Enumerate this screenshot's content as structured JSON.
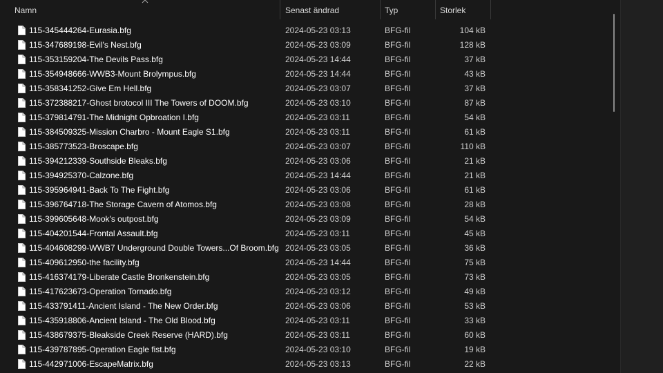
{
  "columns": {
    "name": "Namn",
    "date": "Senast ändrad",
    "type": "Typ",
    "size": "Storlek"
  },
  "files": [
    {
      "name": "115-345444264-Eurasia.bfg",
      "date": "2024-05-23 03:13",
      "type": "BFG-fil",
      "size": "104 kB"
    },
    {
      "name": "115-347689198-Evil's Nest.bfg",
      "date": "2024-05-23 03:09",
      "type": "BFG-fil",
      "size": "128 kB"
    },
    {
      "name": "115-353159204-The Devils Pass.bfg",
      "date": "2024-05-23 14:44",
      "type": "BFG-fil",
      "size": "37 kB"
    },
    {
      "name": "115-354948666-WWB3-Mount Brolympus.bfg",
      "date": "2024-05-23 14:44",
      "type": "BFG-fil",
      "size": "43 kB"
    },
    {
      "name": "115-358341252-Give Em Hell.bfg",
      "date": "2024-05-23 03:07",
      "type": "BFG-fil",
      "size": "37 kB"
    },
    {
      "name": "115-372388217-Ghost brotocol III The Towers of DOOM.bfg",
      "date": "2024-05-23 03:10",
      "type": "BFG-fil",
      "size": "87 kB"
    },
    {
      "name": "115-379814791-The Midnight Opbroation I.bfg",
      "date": "2024-05-23 03:11",
      "type": "BFG-fil",
      "size": "54 kB"
    },
    {
      "name": "115-384509325-Mission Charbro - Mount Eagle S1.bfg",
      "date": "2024-05-23 03:11",
      "type": "BFG-fil",
      "size": "61 kB"
    },
    {
      "name": "115-385773523-Broscape.bfg",
      "date": "2024-05-23 03:07",
      "type": "BFG-fil",
      "size": "110 kB"
    },
    {
      "name": "115-394212339-Southside Bleaks.bfg",
      "date": "2024-05-23 03:06",
      "type": "BFG-fil",
      "size": "21 kB"
    },
    {
      "name": "115-394925370-Calzone.bfg",
      "date": "2024-05-23 14:44",
      "type": "BFG-fil",
      "size": "21 kB"
    },
    {
      "name": "115-395964941-Back To The Fight.bfg",
      "date": "2024-05-23 03:06",
      "type": "BFG-fil",
      "size": "61 kB"
    },
    {
      "name": "115-396764718-The Storage Cavern of Atomos.bfg",
      "date": "2024-05-23 03:08",
      "type": "BFG-fil",
      "size": "28 kB"
    },
    {
      "name": "115-399605648-Mook's outpost.bfg",
      "date": "2024-05-23 03:09",
      "type": "BFG-fil",
      "size": "54 kB"
    },
    {
      "name": "115-404201544-Frontal Assault.bfg",
      "date": "2024-05-23 03:11",
      "type": "BFG-fil",
      "size": "45 kB"
    },
    {
      "name": "115-404608299-WWB7 Underground Double Towers...Of Broom.bfg",
      "date": "2024-05-23 03:05",
      "type": "BFG-fil",
      "size": "36 kB"
    },
    {
      "name": "115-409612950-the facility.bfg",
      "date": "2024-05-23 14:44",
      "type": "BFG-fil",
      "size": "75 kB"
    },
    {
      "name": "115-416374179-Liberate Castle Bronkenstein.bfg",
      "date": "2024-05-23 03:05",
      "type": "BFG-fil",
      "size": "73 kB"
    },
    {
      "name": "115-417623673-Operation Tornado.bfg",
      "date": "2024-05-23 03:12",
      "type": "BFG-fil",
      "size": "49 kB"
    },
    {
      "name": "115-433791411-Ancient Island - The New Order.bfg",
      "date": "2024-05-23 03:06",
      "type": "BFG-fil",
      "size": "53 kB"
    },
    {
      "name": "115-435918806-Ancient Island - The Old Blood.bfg",
      "date": "2024-05-23 03:11",
      "type": "BFG-fil",
      "size": "33 kB"
    },
    {
      "name": "115-438679375-Bleakside Creek Reserve (HARD).bfg",
      "date": "2024-05-23 03:11",
      "type": "BFG-fil",
      "size": "60 kB"
    },
    {
      "name": "115-439787895-Operation Eagle fist.bfg",
      "date": "2024-05-23 03:10",
      "type": "BFG-fil",
      "size": "19 kB"
    },
    {
      "name": "115-442971006-EscapeMatrix.bfg",
      "date": "2024-05-23 03:13",
      "type": "BFG-fil",
      "size": "22 kB"
    }
  ],
  "icons": {
    "file": "file-icon",
    "sort": "chevron-up-icon"
  },
  "colors": {
    "background": "#191919",
    "text": "#ffffff",
    "divider": "#3a3a3a"
  }
}
